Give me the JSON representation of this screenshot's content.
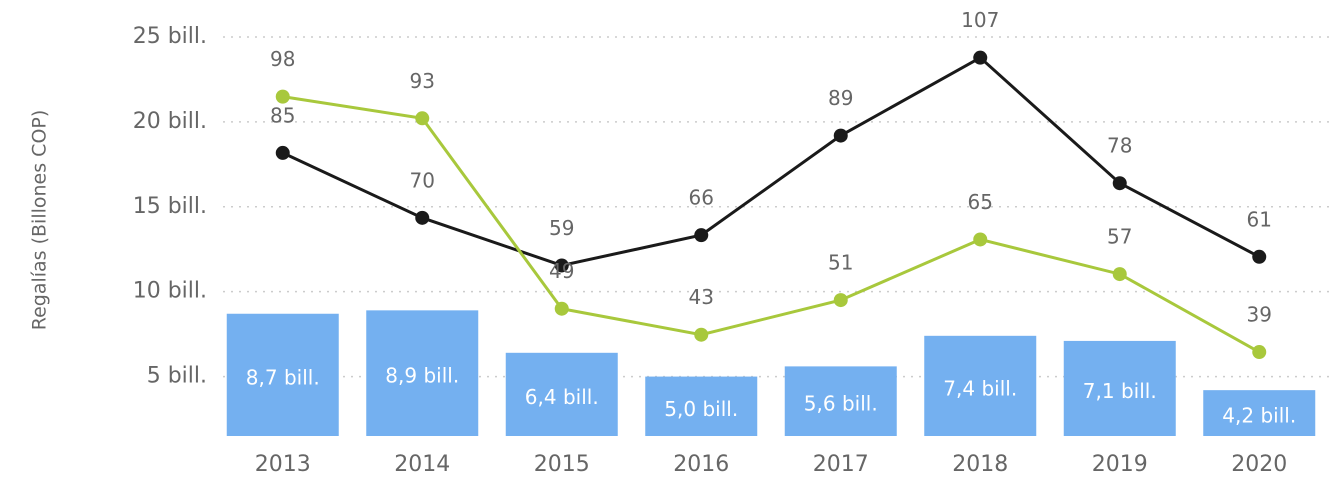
{
  "chart_data": {
    "type": "bar",
    "y_label": "Regalías (Billones COP)",
    "categories": [
      "2013",
      "2014",
      "2015",
      "2016",
      "2017",
      "2018",
      "2019",
      "2020"
    ],
    "values": [
      8.7,
      8.9,
      6.4,
      5.0,
      5.6,
      7.4,
      7.1,
      4.2
    ],
    "value_labels": [
      "8,7 bill.",
      "8,9 bill.",
      "6,4 bill.",
      "5,0 bill.",
      "5,6 bill.",
      "7,4 bill.",
      "7,1 bill.",
      "4,2 bill."
    ],
    "color": "#74b0f0",
    "ylim": [
      1.5,
      26
    ],
    "yticks": [
      {
        "value": 5,
        "label": "5 bill."
      },
      {
        "value": 10,
        "label": "10 bill."
      },
      {
        "value": 15,
        "label": "15 bill."
      },
      {
        "value": 20,
        "label": "20 bill."
      },
      {
        "value": 25,
        "label": "25 bill."
      }
    ],
    "grid": true,
    "y2lim": [
      19.6,
      115.7
    ],
    "series": [
      {
        "type": "line",
        "axis": "y2",
        "color": "#1a1a1a",
        "values": [
          85,
          70,
          59,
          66,
          89,
          107,
          78,
          61
        ]
      },
      {
        "type": "line",
        "axis": "y2",
        "color": "#a8c83c",
        "values": [
          98,
          93,
          49,
          43,
          51,
          65,
          57,
          39
        ]
      }
    ]
  }
}
